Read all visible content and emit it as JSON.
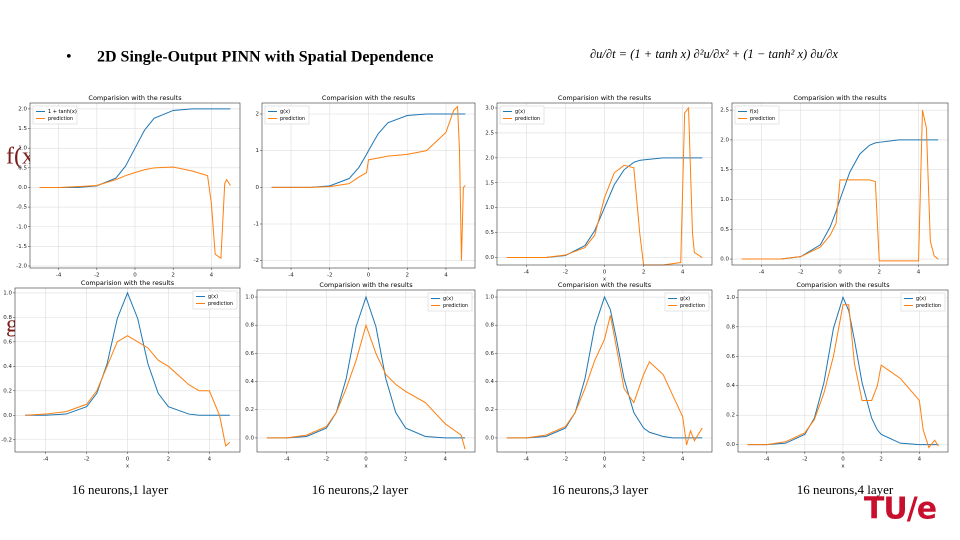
{
  "slide": {
    "bullet": "•",
    "title": "2D Single-Output PINN with Spatial Dependence",
    "equation": "∂u/∂t = (1 + tanh x) ∂²u/∂x² + (1 − tanh² x) ∂u/∂x",
    "row_labels": [
      "f(x)",
      "g(x)"
    ],
    "captions": [
      "16 neurons,1  layer",
      "16 neurons,2  layer",
      "16 neurons,3  layer",
      "16 neurons,4  layer"
    ],
    "logo": "TU/e"
  },
  "chart_data": [
    {
      "type": "line",
      "title": "Comparision with the results",
      "legend": "upper left",
      "grid": true,
      "x": [
        -5,
        -4,
        -3,
        -2,
        -1,
        -0.5,
        0,
        0.5,
        1,
        2,
        3,
        3.8,
        4.0,
        4.2,
        4.5,
        4.7,
        4.8,
        5.0
      ],
      "series": [
        {
          "name": "1 + tanh(x)",
          "color": "#1f77b4",
          "values": [
            0,
            0,
            0,
            0.04,
            0.24,
            0.54,
            1,
            1.46,
            1.76,
            1.96,
            2,
            2,
            2,
            2,
            2,
            2,
            2,
            2
          ]
        },
        {
          "name": "prediction",
          "color": "#ff7f0e",
          "values": [
            0,
            0,
            0.02,
            0.05,
            0.2,
            0.3,
            0.38,
            0.45,
            0.5,
            0.52,
            0.42,
            0.3,
            -0.4,
            -1.7,
            -1.8,
            0.1,
            0.2,
            0.05
          ]
        }
      ],
      "xlim": [
        -5.5,
        5.5
      ],
      "xticks": [
        -4,
        -2,
        0,
        2,
        4
      ],
      "ylim": [
        -2.05,
        2.15
      ],
      "yticks": [
        {
          "value": -2,
          "label": "-2.0"
        },
        -1.5,
        {
          "value": -1,
          "label": "-1.0"
        },
        -0.5,
        {
          "value": 0,
          "label": "0.0"
        },
        0.5,
        {
          "value": 1,
          "label": "1.0"
        },
        1.5,
        {
          "value": 2,
          "label": "2.0"
        }
      ]
    },
    {
      "type": "line",
      "title": "Comparision with the results",
      "legend": "upper left",
      "grid": true,
      "x": [
        -5,
        -4,
        -3,
        -2,
        -1,
        -0.5,
        -0.1,
        0,
        0.5,
        1,
        2,
        3,
        4,
        4.4,
        4.6,
        4.7,
        4.8,
        4.9,
        5.0
      ],
      "series": [
        {
          "name": "g(x)",
          "color": "#1f77b4",
          "values": [
            0,
            0,
            0,
            0.04,
            0.24,
            0.54,
            0.9,
            1,
            1.46,
            1.76,
            1.96,
            2,
            2,
            2,
            2,
            2,
            2,
            2,
            2
          ]
        },
        {
          "name": "prediction",
          "color": "#ff7f0e",
          "values": [
            0,
            0,
            0,
            0.02,
            0.1,
            0.28,
            0.4,
            0.75,
            0.8,
            0.85,
            0.9,
            1.0,
            1.5,
            2.1,
            2.2,
            1.0,
            -2.0,
            0.0,
            0.05
          ]
        }
      ],
      "xlim": [
        -5.5,
        5.5
      ],
      "xticks": [
        -4,
        -2,
        0,
        2,
        4
      ],
      "ylim": [
        -2.2,
        2.3
      ],
      "yticks": [
        -2,
        -1,
        0,
        1,
        2
      ]
    },
    {
      "type": "line",
      "title": "Comparision with the results",
      "legend": "upper left",
      "grid": true,
      "xlabel": "x",
      "x": [
        -5,
        -4,
        -3,
        -2,
        -1,
        -0.5,
        0,
        0.5,
        1,
        1.5,
        1.8,
        2,
        3,
        3.9,
        4.1,
        4.3,
        4.5,
        4.6,
        5.0
      ],
      "series": [
        {
          "name": "g(x)",
          "color": "#1f77b4",
          "values": [
            0,
            0,
            0,
            0.04,
            0.24,
            0.54,
            1,
            1.46,
            1.76,
            1.91,
            1.95,
            1.96,
            2,
            2,
            2,
            2,
            2,
            2,
            2
          ]
        },
        {
          "name": "prediction",
          "color": "#ff7f0e",
          "values": [
            0,
            0,
            0,
            0.05,
            0.2,
            0.45,
            1.2,
            1.7,
            1.85,
            1.8,
            0.5,
            -0.15,
            -0.15,
            -0.1,
            2.9,
            3.0,
            0.5,
            0.1,
            0.0
          ]
        }
      ],
      "xlim": [
        -5.5,
        5.5
      ],
      "xticks": [
        -4,
        -2,
        0,
        2,
        4
      ],
      "ylim": [
        -0.15,
        3.1
      ],
      "yticks": [
        {
          "value": 0,
          "label": "0.0"
        },
        0.5,
        {
          "value": 1,
          "label": "1.0"
        },
        1.5,
        {
          "value": 2,
          "label": "2.0"
        },
        2.5,
        {
          "value": 3,
          "label": "3.0"
        }
      ]
    },
    {
      "type": "line",
      "title": "Comparision with the results",
      "legend": "upper left",
      "grid": true,
      "x": [
        -5,
        -4,
        -3,
        -2,
        -1,
        -0.5,
        -0.2,
        0,
        0.5,
        1,
        1.5,
        1.8,
        2,
        3,
        4,
        4.2,
        4.4,
        4.6,
        4.8,
        5.0
      ],
      "series": [
        {
          "name": "f(x)",
          "color": "#1f77b4",
          "values": [
            0,
            0,
            0,
            0.04,
            0.24,
            0.54,
            0.8,
            1,
            1.46,
            1.76,
            1.91,
            1.95,
            1.96,
            2,
            2,
            2,
            2,
            2,
            2,
            2
          ]
        },
        {
          "name": "prediction",
          "color": "#ff7f0e",
          "values": [
            0,
            0,
            0,
            0.04,
            0.2,
            0.4,
            0.6,
            1.33,
            1.33,
            1.33,
            1.33,
            1.3,
            -0.03,
            -0.03,
            -0.03,
            2.5,
            2.2,
            0.3,
            0.05,
            0.0
          ]
        }
      ],
      "xlim": [
        -5.5,
        5.5
      ],
      "xticks": [
        -4,
        -2,
        0,
        2,
        4
      ],
      "ylim": [
        -0.1,
        2.62
      ],
      "yticks": [
        {
          "value": 0,
          "label": "0.0"
        },
        0.5,
        {
          "value": 1,
          "label": "1.0"
        },
        1.5,
        {
          "value": 2,
          "label": "2.0"
        },
        2.5
      ]
    },
    {
      "type": "line",
      "title": "Comparision with the results",
      "legend": "upper right",
      "grid": true,
      "xlabel": "x",
      "x": [
        -5,
        -4,
        -3,
        -2,
        -1.5,
        -1,
        -0.5,
        0,
        0.5,
        1,
        1.5,
        2,
        3,
        3.5,
        4,
        4.5,
        4.8,
        5.0
      ],
      "series": [
        {
          "name": "g(x)",
          "color": "#1f77b4",
          "values": [
            0,
            0,
            0.01,
            0.07,
            0.18,
            0.42,
            0.79,
            1,
            0.79,
            0.42,
            0.18,
            0.07,
            0.01,
            0,
            0,
            0,
            0,
            0
          ]
        },
        {
          "name": "prediction",
          "color": "#ff7f0e",
          "values": [
            0,
            0.01,
            0.03,
            0.09,
            0.2,
            0.4,
            0.6,
            0.65,
            0.6,
            0.55,
            0.45,
            0.4,
            0.25,
            0.2,
            0.2,
            0.0,
            -0.25,
            -0.22
          ]
        }
      ],
      "xlim": [
        -5.5,
        5.5
      ],
      "xticks": [
        -4,
        -2,
        0,
        2,
        4
      ],
      "ylim": [
        -0.3,
        1.04
      ],
      "yticks": [
        -0.2,
        {
          "value": 0,
          "label": "0.0"
        },
        0.2,
        0.4,
        0.6,
        0.8,
        {
          "value": 1,
          "label": "1.0"
        }
      ]
    },
    {
      "type": "line",
      "title": "Comparision with the results",
      "legend": "upper right",
      "grid": true,
      "xlabel": "x",
      "x": [
        -5,
        -4,
        -3,
        -2,
        -1.5,
        -1,
        -0.5,
        0,
        0.5,
        1,
        1.5,
        2,
        3,
        4,
        4.5,
        4.8,
        5.0
      ],
      "series": [
        {
          "name": "g(x)",
          "color": "#1f77b4",
          "values": [
            0,
            0,
            0.01,
            0.07,
            0.18,
            0.42,
            0.79,
            1,
            0.79,
            0.42,
            0.18,
            0.07,
            0.01,
            0,
            0,
            0,
            0
          ]
        },
        {
          "name": "prediction",
          "color": "#ff7f0e",
          "values": [
            0,
            0,
            0.02,
            0.08,
            0.18,
            0.35,
            0.55,
            0.8,
            0.6,
            0.45,
            0.38,
            0.33,
            0.25,
            0.1,
            0.05,
            0.02,
            -0.08
          ]
        }
      ],
      "xlim": [
        -5.5,
        5.5
      ],
      "xticks": [
        -4,
        -2,
        0,
        2,
        4
      ],
      "ylim": [
        -0.1,
        1.05
      ],
      "yticks": [
        {
          "value": 0,
          "label": "0.0"
        },
        0.2,
        0.4,
        0.6,
        0.8,
        {
          "value": 1,
          "label": "1.0"
        }
      ]
    },
    {
      "type": "line",
      "title": "Comparision with the results",
      "legend": "upper right",
      "grid": true,
      "xlabel": "x",
      "x": [
        -5,
        -4,
        -3,
        -2,
        -1.5,
        -1,
        -0.5,
        0,
        0.3,
        0.6,
        1,
        1.5,
        2,
        2.3,
        3,
        3.5,
        4,
        4.2,
        4.4,
        4.6,
        5.0
      ],
      "series": [
        {
          "name": "g(x)",
          "color": "#1f77b4",
          "values": [
            0,
            0,
            0.01,
            0.07,
            0.18,
            0.42,
            0.79,
            1,
            0.91,
            0.71,
            0.42,
            0.18,
            0.07,
            0.04,
            0.01,
            0,
            0,
            0,
            0,
            0,
            0
          ]
        },
        {
          "name": "prediction",
          "color": "#ff7f0e",
          "values": [
            0,
            0,
            0.02,
            0.08,
            0.18,
            0.35,
            0.55,
            0.7,
            0.87,
            0.65,
            0.35,
            0.25,
            0.45,
            0.54,
            0.45,
            0.3,
            0.15,
            -0.05,
            0.05,
            -0.02,
            0.07
          ]
        }
      ],
      "xlim": [
        -5.5,
        5.5
      ],
      "xticks": [
        -4,
        -2,
        0,
        2,
        4
      ],
      "ylim": [
        -0.1,
        1.05
      ],
      "yticks": [
        {
          "value": 0,
          "label": "0.0"
        },
        0.2,
        0.4,
        0.6,
        0.8,
        {
          "value": 1,
          "label": "1.0"
        }
      ]
    },
    {
      "type": "line",
      "title": "Comparision with the results",
      "legend": "upper right",
      "grid": true,
      "xlabel": "x",
      "x": [
        -5,
        -4,
        -3,
        -2,
        -1.5,
        -1,
        -0.5,
        0,
        0.3,
        0.6,
        1,
        1.5,
        1.8,
        2,
        3,
        4,
        4.2,
        4.5,
        4.8,
        5.0
      ],
      "series": [
        {
          "name": "g(x)",
          "color": "#1f77b4",
          "values": [
            0,
            0,
            0.01,
            0.07,
            0.18,
            0.42,
            0.79,
            1,
            0.91,
            0.71,
            0.42,
            0.18,
            0.1,
            0.07,
            0.01,
            0,
            0,
            0,
            0,
            0
          ]
        },
        {
          "name": "prediction",
          "color": "#ff7f0e",
          "values": [
            0,
            0,
            0.02,
            0.08,
            0.17,
            0.35,
            0.6,
            0.95,
            0.95,
            0.55,
            0.3,
            0.3,
            0.4,
            0.54,
            0.45,
            0.3,
            0.1,
            -0.02,
            0.03,
            -0.01
          ]
        }
      ],
      "xlim": [
        -5.5,
        5.5
      ],
      "xticks": [
        -4,
        -2,
        0,
        2,
        4
      ],
      "ylim": [
        -0.05,
        1.05
      ],
      "yticks": [
        {
          "value": 0,
          "label": "0.0"
        },
        0.2,
        0.4,
        0.6,
        0.8,
        {
          "value": 1,
          "label": "1.0"
        }
      ]
    }
  ]
}
